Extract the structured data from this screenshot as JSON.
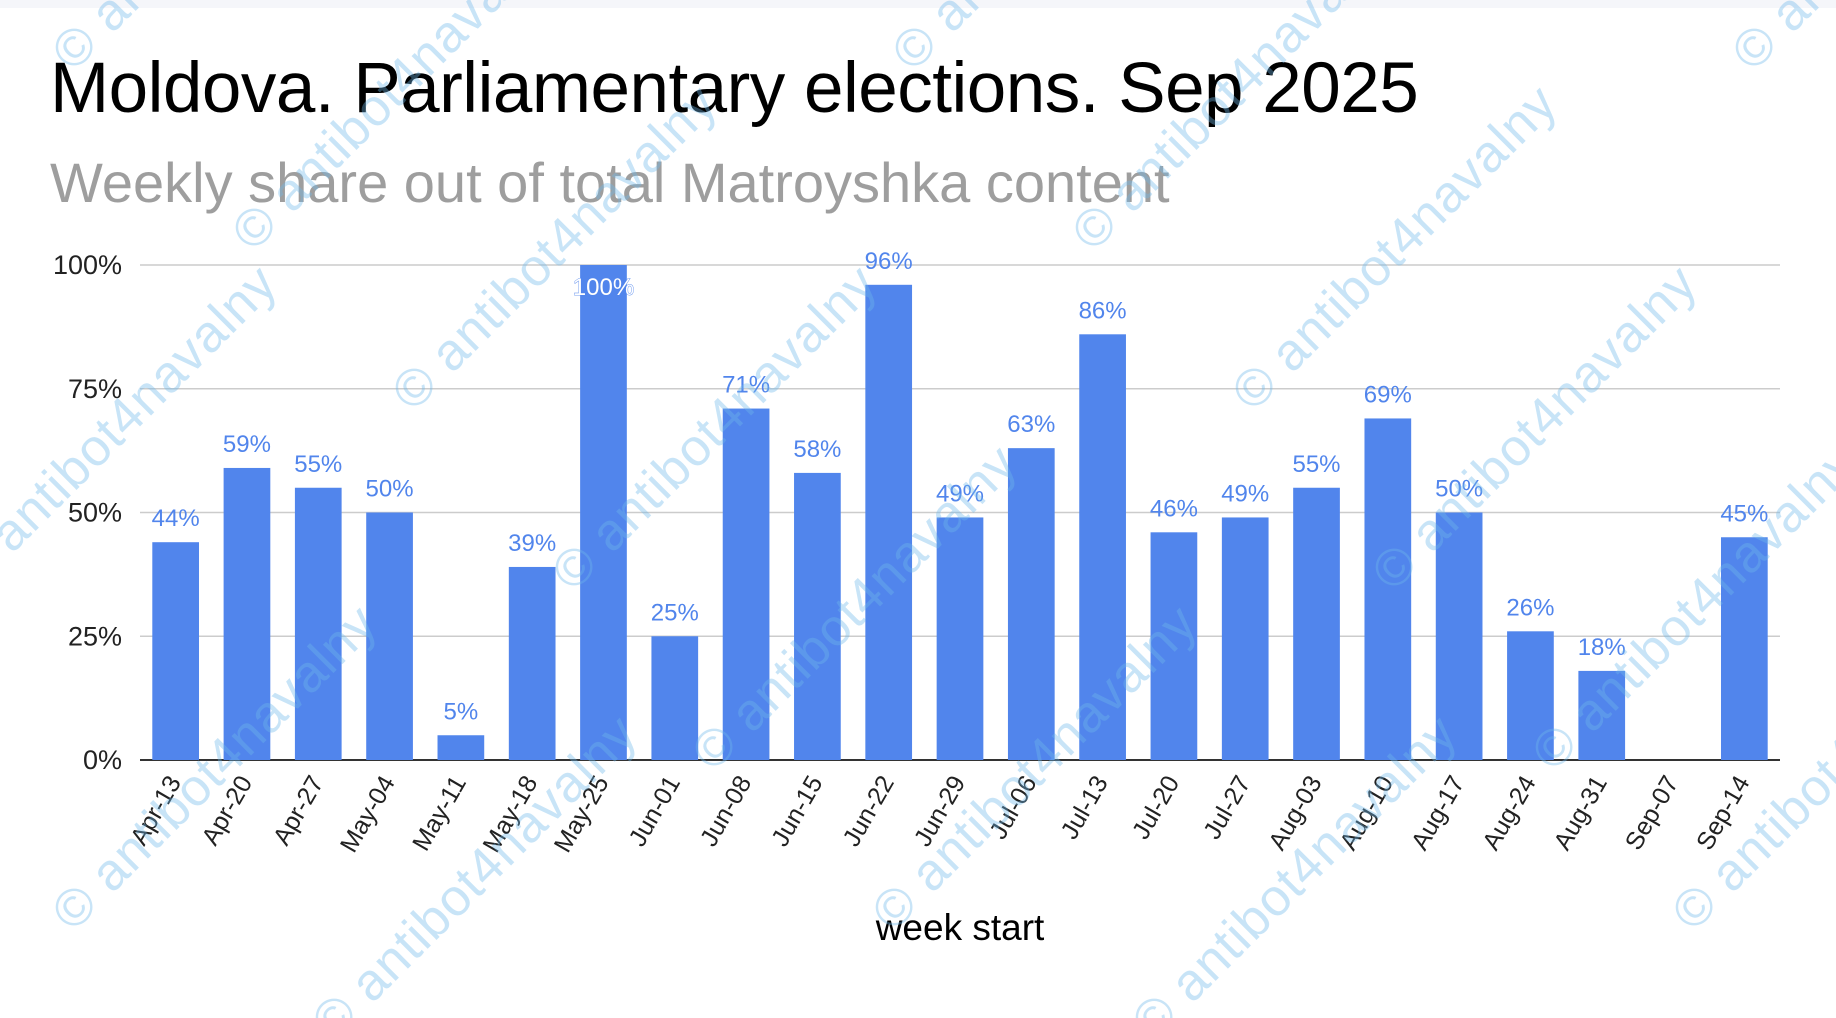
{
  "watermark": "© antibot4navalny",
  "chart_data": {
    "type": "bar",
    "title": "Moldova. Parliamentary elections. Sep 2025",
    "subtitle": "Weekly share out of total Matroyshka content",
    "xlabel": "week start",
    "ylabel": "",
    "ylim": [
      0,
      100
    ],
    "yticks": [
      0,
      25,
      50,
      75,
      100
    ],
    "ytick_labels": [
      "0%",
      "25%",
      "50%",
      "75%",
      "100%"
    ],
    "grid": true,
    "legend": "none",
    "bar_color": "#5185ec",
    "label_color": "#5185ec",
    "categories": [
      "Apr-13",
      "Apr-20",
      "Apr-27",
      "May-04",
      "May-11",
      "May-18",
      "May-25",
      "Jun-01",
      "Jun-08",
      "Jun-15",
      "Jun-22",
      "Jun-29",
      "Jul-06",
      "Jul-13",
      "Jul-20",
      "Jul-27",
      "Aug-03",
      "Aug-10",
      "Aug-17",
      "Aug-24",
      "Aug-31",
      "Sep-07",
      "Sep-14"
    ],
    "values": [
      44,
      59,
      55,
      50,
      5,
      39,
      100,
      25,
      71,
      58,
      96,
      49,
      63,
      86,
      46,
      49,
      55,
      69,
      50,
      26,
      18,
      null,
      45
    ],
    "data_labels": [
      "44%",
      "59%",
      "55%",
      "50%",
      "5%",
      "39%",
      "100%",
      "25%",
      "71%",
      "58%",
      "96%",
      "49%",
      "63%",
      "86%",
      "46%",
      "49%",
      "55%",
      "69%",
      "50%",
      "26%",
      "18%",
      "",
      "45%"
    ]
  }
}
